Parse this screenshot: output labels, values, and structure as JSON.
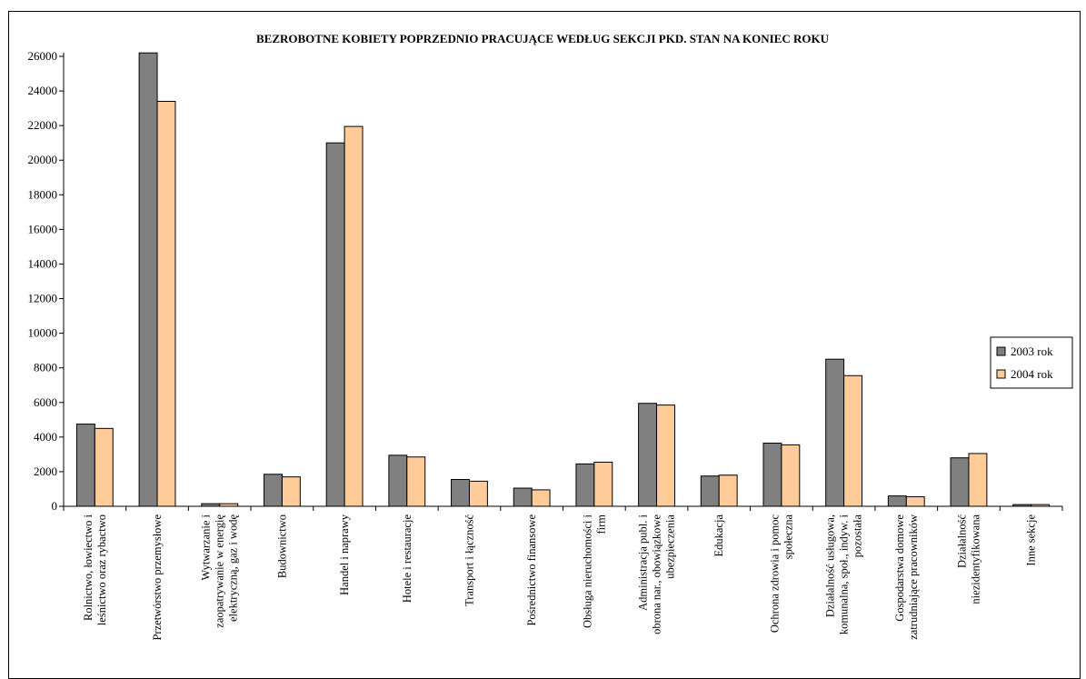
{
  "chart_data": {
    "type": "bar",
    "title": "BEZROBOTNE KOBIETY POPRZEDNIO PRACUJĄCE WEDŁUG SEKCJI PKD. STAN NA KONIEC ROKU",
    "xlabel": "",
    "ylabel": "",
    "ylim": [
      0,
      26000
    ],
    "yticks": [
      0,
      2000,
      4000,
      6000,
      8000,
      10000,
      12000,
      14000,
      16000,
      18000,
      20000,
      22000,
      24000,
      26000
    ],
    "grid": false,
    "legend_position": "right",
    "categories": [
      [
        "Rolnictwo, łowiectwo i",
        "leśnictwo oraz rybactwo"
      ],
      [
        "Przetwórstwo przemysłowe"
      ],
      [
        "Wytwarzanie i",
        "zaopatrywanie w energię",
        "elektryczną, gaz i wodę"
      ],
      [
        "Budownictwo"
      ],
      [
        "Handel i naprawy"
      ],
      [
        "Hotele i restauracje"
      ],
      [
        "Transport i łączność"
      ],
      [
        "Pośrednictwo finansowe"
      ],
      [
        "Obsługa nieruchomości i",
        "firm"
      ],
      [
        "Administracja publ. i",
        "obrona nar., obowiązkowe",
        "ubezpieczenia"
      ],
      [
        "Edukacja"
      ],
      [
        "Ochrona zdrowia i pomoc",
        "społeczna"
      ],
      [
        "Działalność usługowa,",
        "komunalna, społ., indyw. i",
        "pozostała"
      ],
      [
        "Gospodarstwa domowe",
        "zatrudniające pracowników"
      ],
      [
        "Działalność",
        "niezidentyfikowana"
      ],
      [
        "Inne sekcje"
      ]
    ],
    "series": [
      {
        "name": "2003 rok",
        "color": "#808080",
        "values": [
          4750,
          26200,
          150,
          1850,
          21000,
          2950,
          1550,
          1050,
          2450,
          5950,
          1750,
          3650,
          8500,
          600,
          2800,
          100
        ]
      },
      {
        "name": "2004 rok",
        "color": "#ffcc99",
        "values": [
          4500,
          23400,
          150,
          1700,
          21950,
          2850,
          1450,
          950,
          2550,
          5850,
          1800,
          3550,
          7550,
          550,
          3050,
          100
        ]
      }
    ]
  }
}
